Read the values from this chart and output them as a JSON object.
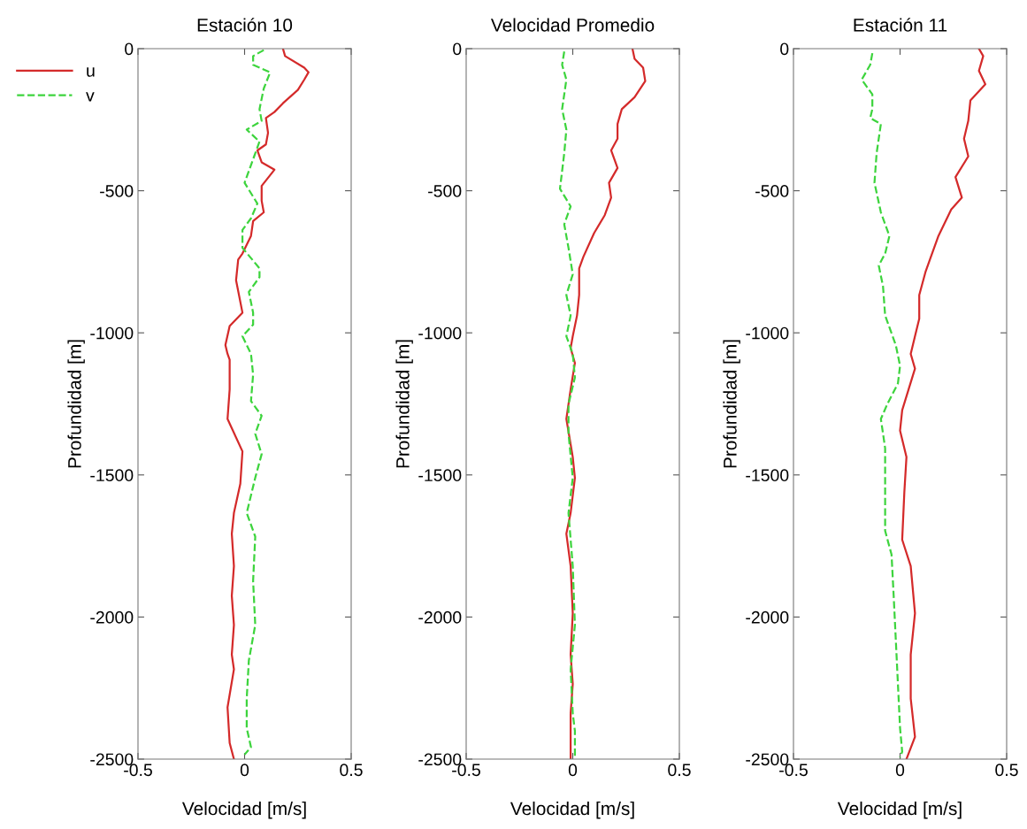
{
  "chart_data": [
    {
      "type": "line",
      "title": "Estación 10",
      "xlabel": "Velocidad [m/s]",
      "ylabel": "Profundidad [m]",
      "xlim": [
        -0.5,
        0.5
      ],
      "xticks": [
        -0.5,
        0,
        0.5
      ],
      "ylim": [
        -2500,
        0
      ],
      "yticks": [
        -2500,
        -2000,
        -1500,
        -1000,
        -500,
        0
      ],
      "grid": false,
      "legend": "top left",
      "series": [
        {
          "name": "u",
          "color": "#d42a2a",
          "line_style": "solid",
          "x": [
            0.18,
            0.19,
            0.28,
            0.3,
            0.28,
            0.25,
            0.18,
            0.14,
            0.1,
            0.11,
            0.1,
            0.06,
            0.08,
            0.14,
            0.08,
            0.08,
            0.09,
            0.04,
            0.03,
            -0.01,
            -0.03,
            -0.04,
            -0.01,
            -0.07,
            -0.09,
            -0.08,
            -0.07,
            -0.07,
            -0.08,
            -0.01,
            -0.02,
            -0.05,
            -0.06,
            -0.05,
            -0.06,
            -0.05,
            -0.06,
            -0.05,
            -0.08,
            -0.07,
            -0.05
          ],
          "values": [
            0,
            -26,
            -67,
            -83,
            -109,
            -145,
            -192,
            -223,
            -244,
            -296,
            -337,
            -358,
            -400,
            -426,
            -483,
            -535,
            -576,
            -607,
            -659,
            -721,
            -742,
            -815,
            -929,
            -976,
            -1043,
            -1074,
            -1095,
            -1199,
            -1303,
            -1417,
            -1531,
            -1634,
            -1707,
            -1821,
            -1925,
            -2028,
            -2132,
            -2184,
            -2318,
            -2443,
            -2500
          ]
        },
        {
          "name": "v",
          "color": "#3dd43d",
          "line_style": "dashed",
          "x": [
            0.09,
            0.04,
            0.04,
            0.12,
            0.09,
            0.07,
            0.08,
            0.01,
            0.07,
            0.04,
            0.0,
            0.06,
            0.03,
            -0.01,
            -0.01,
            0.07,
            0.07,
            0.02,
            0.04,
            0.04,
            -0.01,
            0.03,
            0.04,
            0.03,
            0.08,
            0.05,
            0.08,
            0.05,
            0.01,
            0.05,
            0.04,
            0.05,
            0.02,
            0.01,
            0.01,
            0.03,
            0.0
          ],
          "values": [
            -5,
            -26,
            -57,
            -83,
            -140,
            -213,
            -254,
            -285,
            -327,
            -389,
            -472,
            -545,
            -597,
            -638,
            -701,
            -773,
            -804,
            -856,
            -929,
            -971,
            -1012,
            -1074,
            -1147,
            -1240,
            -1292,
            -1355,
            -1427,
            -1510,
            -1634,
            -1717,
            -1873,
            -2028,
            -2153,
            -2287,
            -2391,
            -2458,
            -2484
          ]
        }
      ]
    },
    {
      "type": "line",
      "title": "Velocidad Promedio",
      "xlabel": "Velocidad [m/s]",
      "ylabel": "Profundidad [m]",
      "xlim": [
        -0.5,
        0.5
      ],
      "xticks": [
        -0.5,
        0,
        0.5
      ],
      "ylim": [
        -2500,
        0
      ],
      "yticks": [
        -2500,
        -2000,
        -1500,
        -1000,
        -500,
        0
      ],
      "grid": false,
      "series": [
        {
          "color": "#d42a2a",
          "line_style": "solid",
          "x": [
            0.28,
            0.29,
            0.33,
            0.34,
            0.29,
            0.23,
            0.21,
            0.21,
            0.18,
            0.21,
            0.17,
            0.18,
            0.15,
            0.1,
            0.05,
            0.03,
            0.03,
            0.02,
            0.0,
            -0.01,
            0.01,
            -0.01,
            -0.03,
            0.0,
            0.01,
            -0.01,
            -0.03,
            -0.01,
            0.0,
            -0.01,
            0.0,
            -0.01,
            -0.01
          ],
          "values": [
            0,
            -36,
            -67,
            -114,
            -171,
            -213,
            -265,
            -317,
            -358,
            -420,
            -472,
            -524,
            -586,
            -649,
            -732,
            -773,
            -867,
            -939,
            -1012,
            -1054,
            -1106,
            -1199,
            -1303,
            -1437,
            -1510,
            -1634,
            -1707,
            -1821,
            -1987,
            -2132,
            -2236,
            -2339,
            -2500
          ]
        },
        {
          "color": "#3dd43d",
          "line_style": "dashed",
          "x": [
            -0.04,
            -0.05,
            -0.03,
            -0.05,
            -0.03,
            -0.04,
            -0.06,
            -0.01,
            -0.04,
            -0.02,
            0.0,
            -0.03,
            -0.01,
            -0.03,
            0.0,
            0.01,
            -0.02,
            -0.02,
            0.0,
            -0.02,
            0.0,
            0.01,
            -0.01,
            0.0,
            0.01,
            0.01
          ],
          "values": [
            -10,
            -57,
            -109,
            -213,
            -285,
            -368,
            -493,
            -555,
            -618,
            -701,
            -794,
            -867,
            -939,
            -1012,
            -1074,
            -1157,
            -1251,
            -1355,
            -1510,
            -1634,
            -1821,
            -2028,
            -2184,
            -2339,
            -2401,
            -2494
          ]
        }
      ]
    },
    {
      "type": "line",
      "title": "Estación 11",
      "xlabel": "Velocidad [m/s]",
      "ylabel": "Profundidad [m]",
      "xlim": [
        -0.5,
        0.5
      ],
      "xticks": [
        -0.5,
        0,
        0.5
      ],
      "ylim": [
        -2500,
        0
      ],
      "yticks": [
        -2500,
        -2000,
        -1500,
        -1000,
        -500,
        0
      ],
      "grid": false,
      "series": [
        {
          "color": "#d42a2a",
          "line_style": "solid",
          "x": [
            0.37,
            0.39,
            0.37,
            0.4,
            0.33,
            0.32,
            0.3,
            0.32,
            0.26,
            0.29,
            0.24,
            0.18,
            0.14,
            0.12,
            0.09,
            0.09,
            0.07,
            0.05,
            0.07,
            0.04,
            0.01,
            0.0,
            0.03,
            0.02,
            0.01,
            0.05,
            0.07,
            0.05,
            0.05,
            0.07,
            0.03
          ],
          "values": [
            0,
            -26,
            -78,
            -125,
            -182,
            -254,
            -317,
            -379,
            -452,
            -524,
            -566,
            -659,
            -742,
            -784,
            -867,
            -950,
            -1012,
            -1074,
            -1126,
            -1199,
            -1272,
            -1344,
            -1437,
            -1562,
            -1728,
            -1821,
            -1987,
            -2132,
            -2287,
            -2422,
            -2500
          ]
        },
        {
          "color": "#3dd43d",
          "line_style": "dashed",
          "x": [
            -0.13,
            -0.14,
            -0.18,
            -0.13,
            -0.13,
            -0.14,
            -0.09,
            -0.11,
            -0.12,
            -0.09,
            -0.05,
            -0.07,
            -0.1,
            -0.08,
            -0.07,
            -0.02,
            0.0,
            -0.01,
            -0.06,
            -0.09,
            -0.07,
            -0.07,
            -0.07,
            -0.04,
            -0.03,
            -0.02,
            -0.01,
            0.0,
            0.01,
            0.0
          ],
          "values": [
            -16,
            -57,
            -109,
            -161,
            -213,
            -244,
            -265,
            -368,
            -472,
            -576,
            -659,
            -721,
            -763,
            -836,
            -939,
            -1043,
            -1116,
            -1178,
            -1251,
            -1303,
            -1406,
            -1562,
            -1697,
            -1780,
            -1925,
            -2080,
            -2236,
            -2391,
            -2474,
            -2494
          ]
        }
      ]
    }
  ]
}
